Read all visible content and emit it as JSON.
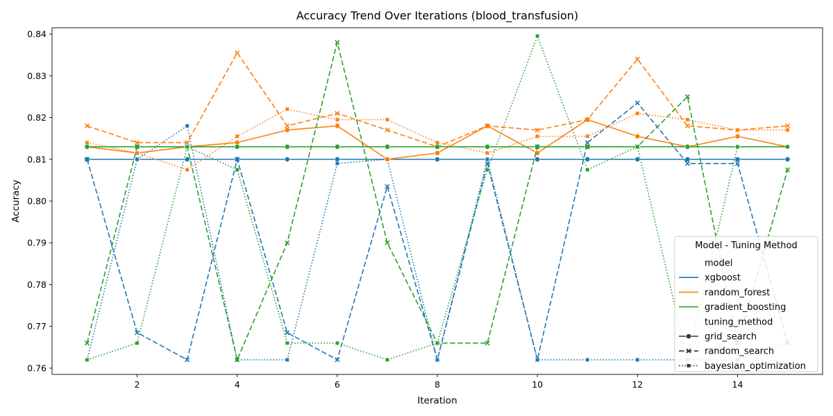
{
  "chart_data": {
    "type": "line",
    "title": "Accuracy Trend Over Iterations (blood_transfusion)",
    "xlabel": "Iteration",
    "ylabel": "Accuracy",
    "xlim": [
      0.3,
      15.7
    ],
    "ylim": [
      0.7585,
      0.8415
    ],
    "x_ticks": [
      2,
      4,
      6,
      8,
      10,
      12,
      14
    ],
    "y_ticks": [
      0.76,
      0.77,
      0.78,
      0.79,
      0.8,
      0.81,
      0.82,
      0.83,
      0.84
    ],
    "y_tick_labels": [
      "0.76",
      "0.77",
      "0.78",
      "0.79",
      "0.80",
      "0.81",
      "0.82",
      "0.83",
      "0.84"
    ],
    "grid": false,
    "legend": {
      "title": "Model - Tuning Method",
      "placement": "lower-right",
      "model_header": "model",
      "method_header": "tuning_method",
      "models": [
        {
          "label": "xgboost",
          "color": "#1f77b4"
        },
        {
          "label": "random_forest",
          "color": "#ff7f0e"
        },
        {
          "label": "gradient_boosting",
          "color": "#2ca02c"
        }
      ],
      "methods": [
        {
          "label": "grid_search",
          "dash": "solid",
          "marker": "circle"
        },
        {
          "label": "random_search",
          "dash": "dashed",
          "marker": "x"
        },
        {
          "label": "bayesian_optimization",
          "dash": "dotted",
          "marker": "square"
        }
      ]
    },
    "x": [
      1,
      2,
      3,
      4,
      5,
      6,
      7,
      8,
      9,
      10,
      11,
      12,
      13,
      14,
      15
    ],
    "series": [
      {
        "model": "xgboost",
        "method": "grid_search",
        "color": "#1f77b4",
        "dash": "solid",
        "marker": "circle",
        "values": [
          0.81,
          0.81,
          0.81,
          0.81,
          0.81,
          0.81,
          0.81,
          0.81,
          0.81,
          0.81,
          0.81,
          0.81,
          0.81,
          0.81,
          0.81
        ]
      },
      {
        "model": "xgboost",
        "method": "random_search",
        "color": "#1f77b4",
        "dash": "dashed",
        "marker": "x",
        "values": [
          0.81,
          0.7685,
          0.762,
          0.81,
          0.7685,
          0.762,
          0.8035,
          0.762,
          0.809,
          0.762,
          0.814,
          0.8235,
          0.809,
          0.809,
          0.766
        ]
      },
      {
        "model": "xgboost",
        "method": "bayesian_optimization",
        "color": "#1f77b4",
        "dash": "dotted",
        "marker": "square",
        "values": [
          0.762,
          0.81,
          0.818,
          0.762,
          0.762,
          0.809,
          0.81,
          0.762,
          0.81,
          0.762,
          0.762,
          0.762,
          0.762,
          0.762,
          0.766
        ]
      },
      {
        "model": "random_forest",
        "method": "grid_search",
        "color": "#ff7f0e",
        "dash": "solid",
        "marker": "circle",
        "values": [
          0.813,
          0.8115,
          0.813,
          0.814,
          0.817,
          0.818,
          0.81,
          0.8115,
          0.818,
          0.8115,
          0.8195,
          0.8155,
          0.813,
          0.8155,
          0.813
        ]
      },
      {
        "model": "random_forest",
        "method": "random_search",
        "color": "#ff7f0e",
        "dash": "dashed",
        "marker": "x",
        "values": [
          0.818,
          0.814,
          0.814,
          0.8355,
          0.818,
          0.821,
          0.817,
          0.813,
          0.818,
          0.817,
          0.8195,
          0.834,
          0.818,
          0.817,
          0.818
        ]
      },
      {
        "model": "random_forest",
        "method": "bayesian_optimization",
        "color": "#ff7f0e",
        "dash": "dotted",
        "marker": "square",
        "values": [
          0.814,
          0.8115,
          0.8075,
          0.8155,
          0.822,
          0.8195,
          0.8195,
          0.814,
          0.8115,
          0.8155,
          0.8155,
          0.821,
          0.8195,
          0.817,
          0.817
        ]
      },
      {
        "model": "gradient_boosting",
        "method": "grid_search",
        "color": "#2ca02c",
        "dash": "solid",
        "marker": "circle",
        "values": [
          0.813,
          0.813,
          0.813,
          0.813,
          0.813,
          0.813,
          0.813,
          0.813,
          0.813,
          0.813,
          0.813,
          0.813,
          0.813,
          0.813,
          0.813
        ]
      },
      {
        "model": "gradient_boosting",
        "method": "random_search",
        "color": "#2ca02c",
        "dash": "dashed",
        "marker": "x",
        "values": [
          0.766,
          0.813,
          0.813,
          0.762,
          0.79,
          0.838,
          0.79,
          0.766,
          0.766,
          0.813,
          0.813,
          0.813,
          0.825,
          0.766,
          0.8075
        ]
      },
      {
        "model": "gradient_boosting",
        "method": "bayesian_optimization",
        "color": "#2ca02c",
        "dash": "dotted",
        "marker": "square",
        "values": [
          0.762,
          0.766,
          0.813,
          0.8075,
          0.766,
          0.766,
          0.762,
          0.766,
          0.8075,
          0.8395,
          0.8075,
          0.813,
          0.762,
          0.813,
          0.813
        ]
      }
    ]
  }
}
